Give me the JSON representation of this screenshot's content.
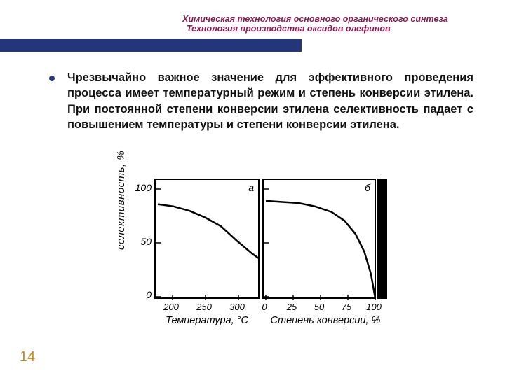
{
  "header": {
    "line1": "Химическая технология основного органического синтеза",
    "line2": "Технология производства оксидов олефинов",
    "bar_color": "#23367a",
    "text_color": "#8b1a4f"
  },
  "body": {
    "paragraph": "Чрезвычайно важное значение для эффективного проведения процесса имеет температурный режим и степень конверсии этилена. При постоянной степени конверсии этилена селективность падает с повышением температуры и степени конверсии этилена.",
    "bullet_color": "#2a3a7a",
    "fontsize": 16.5
  },
  "figure": {
    "yaxis_label": "селективность, %",
    "yticks": [
      "0",
      "50",
      "100"
    ],
    "ytick_values": [
      0,
      50,
      100
    ],
    "ylim": [
      0,
      105
    ],
    "panel_a": {
      "label": "а",
      "xlabel": "Температура, °С",
      "xticks": [
        "200",
        "250",
        "300"
      ],
      "xtick_values": [
        200,
        250,
        300
      ],
      "xlim": [
        175,
        335
      ],
      "curve": [
        {
          "x": 175,
          "y": 85
        },
        {
          "x": 200,
          "y": 83
        },
        {
          "x": 225,
          "y": 79
        },
        {
          "x": 250,
          "y": 73
        },
        {
          "x": 275,
          "y": 65
        },
        {
          "x": 300,
          "y": 52
        },
        {
          "x": 325,
          "y": 40
        },
        {
          "x": 335,
          "y": 36
        }
      ],
      "curve_color": "#000000"
    },
    "panel_b": {
      "label": "б",
      "xlabel": "Степень конверсии, %",
      "xticks": [
        "0",
        "25",
        "50",
        "75",
        "100"
      ],
      "xtick_values": [
        0,
        25,
        50,
        75,
        100
      ],
      "xlim": [
        0,
        100
      ],
      "curve": [
        {
          "x": 0,
          "y": 88
        },
        {
          "x": 15,
          "y": 87
        },
        {
          "x": 30,
          "y": 86
        },
        {
          "x": 45,
          "y": 83
        },
        {
          "x": 60,
          "y": 78
        },
        {
          "x": 72,
          "y": 70
        },
        {
          "x": 82,
          "y": 58
        },
        {
          "x": 90,
          "y": 42
        },
        {
          "x": 96,
          "y": 22
        },
        {
          "x": 100,
          "y": 0
        }
      ],
      "curve_color": "#000000"
    },
    "background_color": "#ffffff",
    "axis_color": "#000000",
    "tick_fontsize": 13,
    "label_fontsize": 14.5
  },
  "page_number": "14",
  "page_number_color": "#c2891f"
}
